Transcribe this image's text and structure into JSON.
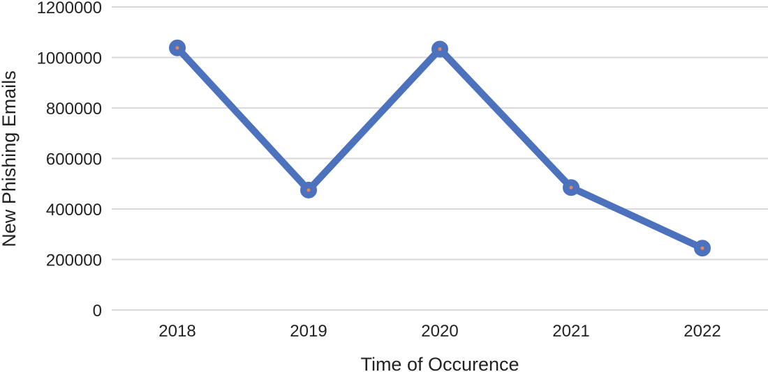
{
  "chart_data": {
    "type": "line",
    "title": "",
    "xlabel": "Time of Occurence",
    "ylabel": "New Phishing Emails",
    "categories": [
      "2018",
      "2019",
      "2020",
      "2021",
      "2022"
    ],
    "y_ticks": [
      "0",
      "200000",
      "400000",
      "600000",
      "800000",
      "1000000",
      "1200000"
    ],
    "ylim": [
      0,
      1200000
    ],
    "grid": true,
    "legend": "none",
    "series": [
      {
        "values": [
          1038000,
          475000,
          1033000,
          485000,
          245000
        ]
      }
    ],
    "colors": {
      "line": "#4c72be",
      "marker_center": "#e8855a",
      "grid": "#d9d9d9"
    }
  }
}
